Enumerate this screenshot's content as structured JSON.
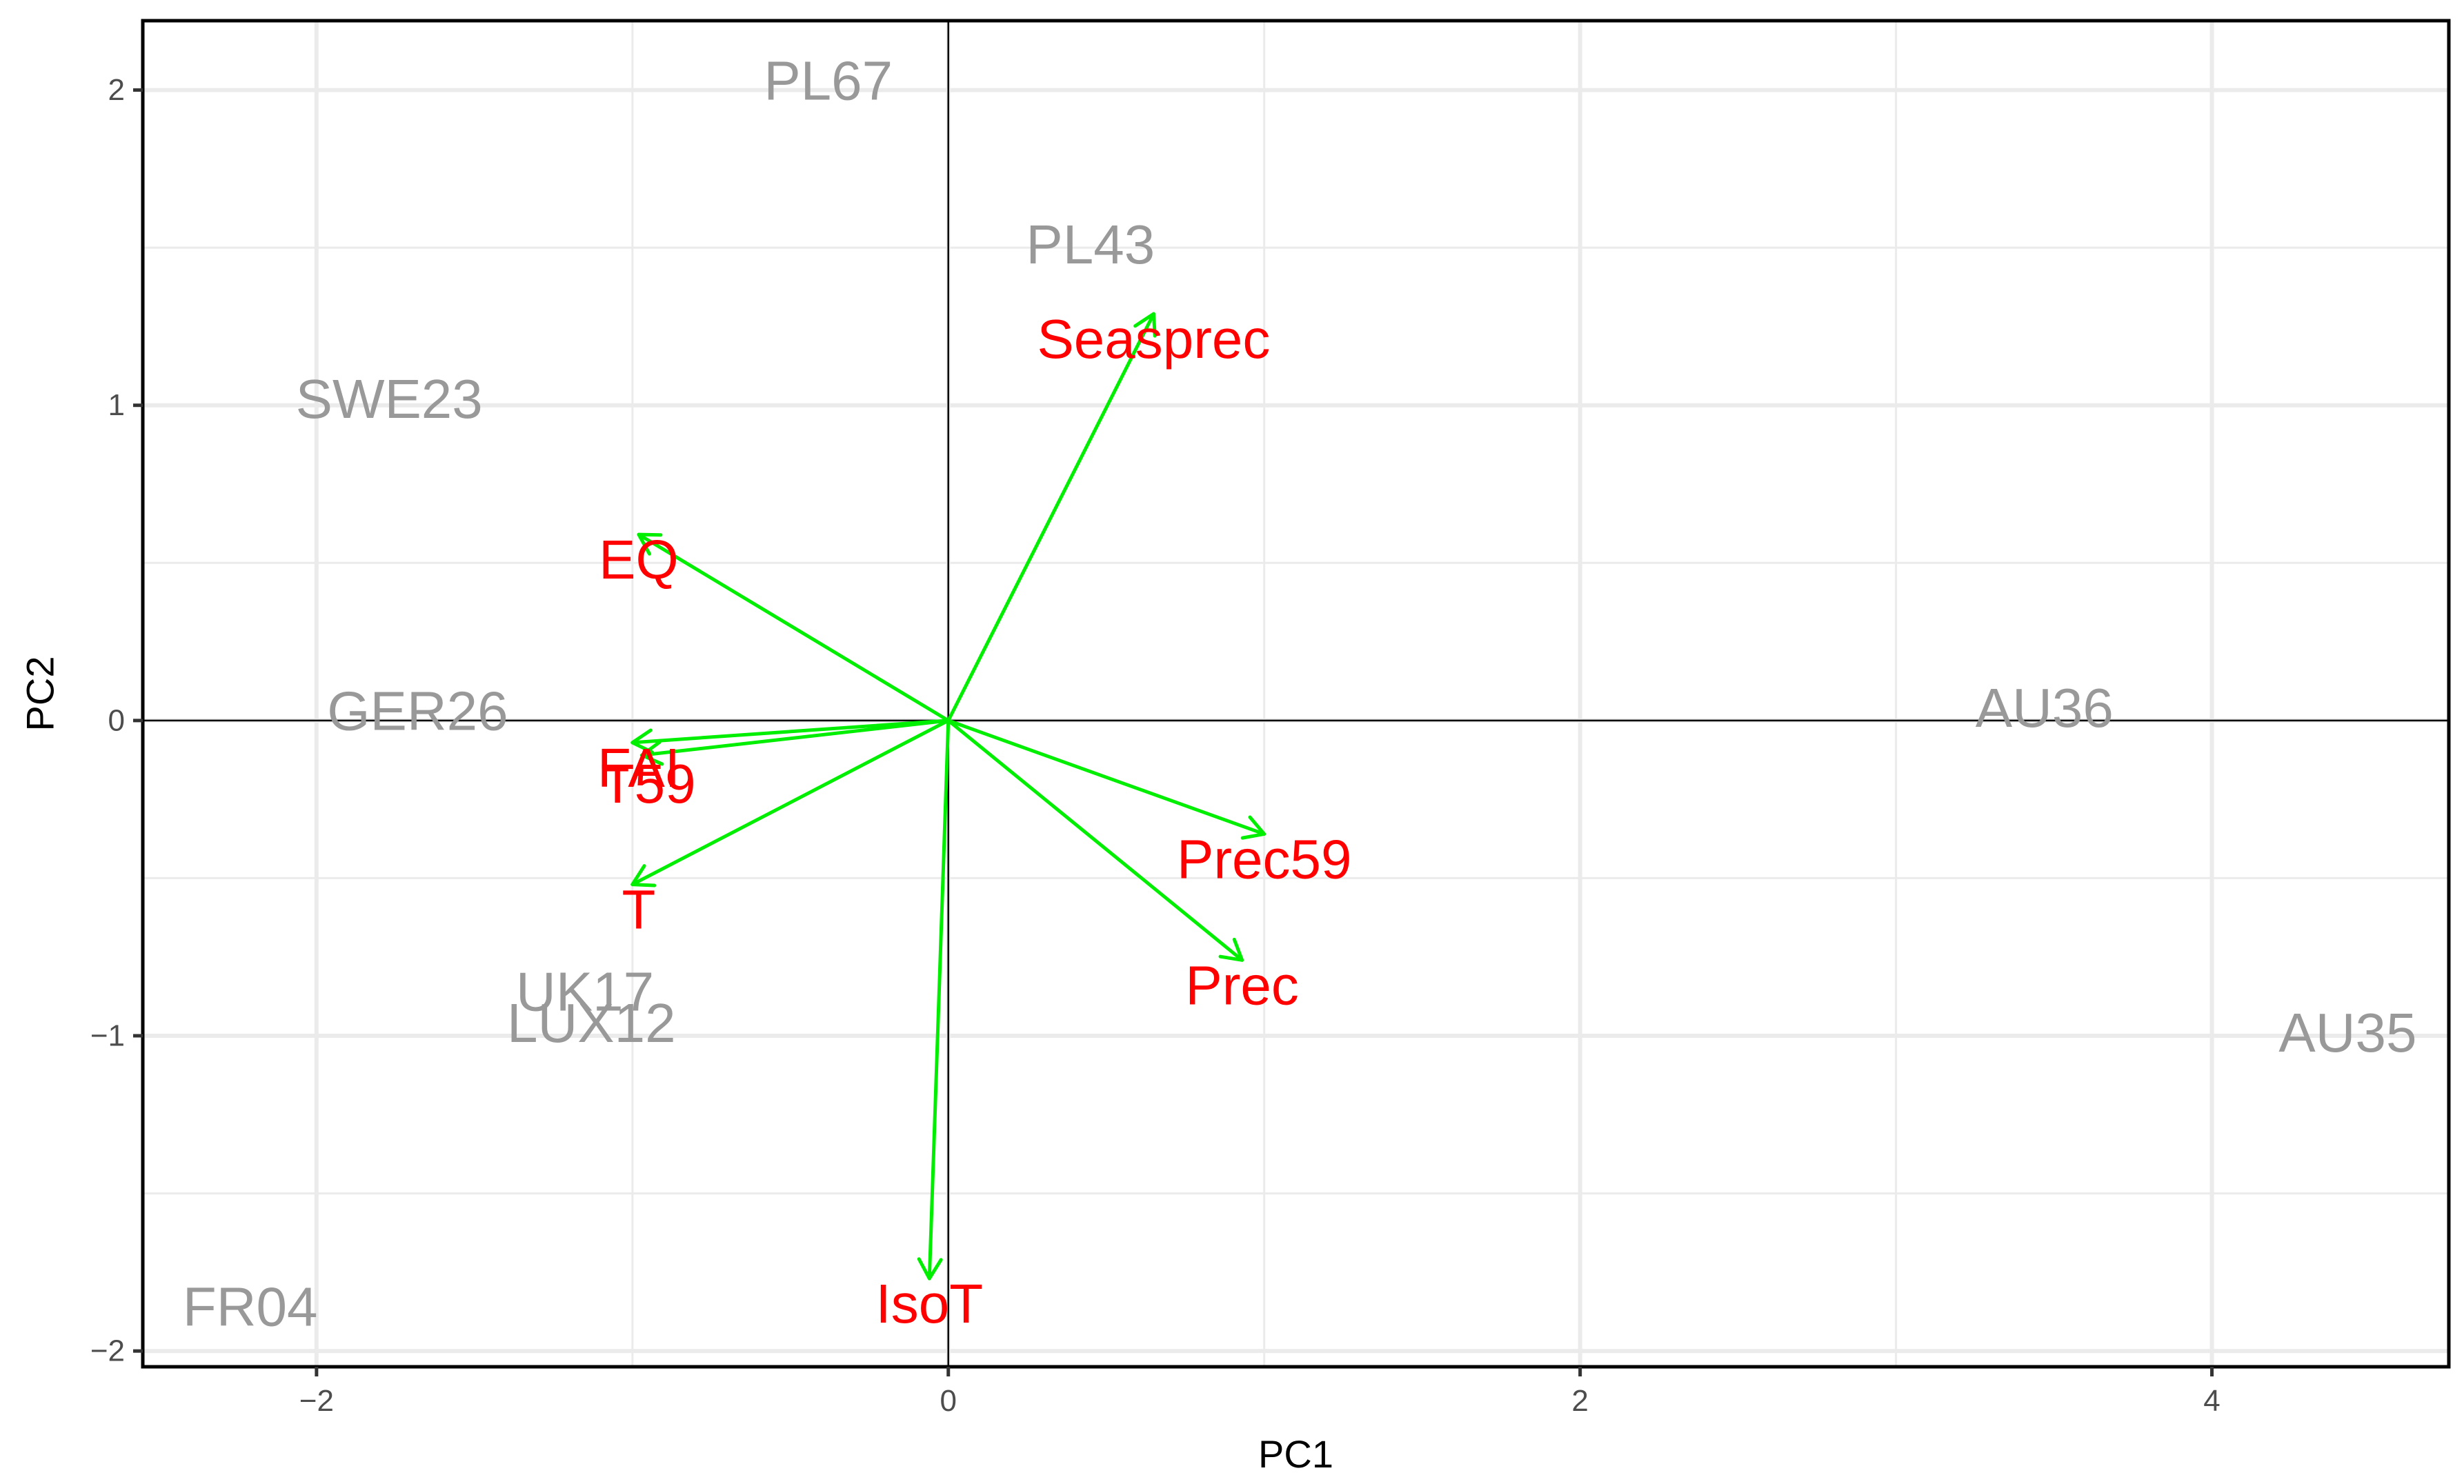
{
  "chart_data": {
    "type": "scatter",
    "subtype": "pca-biplot",
    "title": "",
    "xlabel": "PC1",
    "ylabel": "PC2",
    "xlim": [
      -2.55,
      4.75
    ],
    "ylim": [
      -2.05,
      2.22
    ],
    "x_ticks": [
      -2,
      0,
      2,
      4
    ],
    "y_ticks": [
      -2,
      -1,
      0,
      1,
      2
    ],
    "x_tick_labels": [
      "−2",
      "0",
      "2",
      "4"
    ],
    "y_tick_labels": [
      "−2",
      "−1",
      "0",
      "1",
      "2"
    ],
    "grid": true,
    "legend": "none",
    "zero_lines": true,
    "colors": {
      "site_label": "#999999",
      "variable_label": "#ff0000",
      "arrow": "#00ee00",
      "grid": "#ebebeb",
      "panel_border": "#000000",
      "zero_line": "#000000"
    },
    "sites": [
      {
        "label": "PL67",
        "x": -0.38,
        "y": 2.03
      },
      {
        "label": "PL43",
        "x": 0.45,
        "y": 1.51
      },
      {
        "label": "SWE23",
        "x": -1.77,
        "y": 1.02
      },
      {
        "label": "GER26",
        "x": -1.68,
        "y": 0.03
      },
      {
        "label": "AU36",
        "x": 3.47,
        "y": 0.04
      },
      {
        "label": "UK17",
        "x": -1.15,
        "y": -0.86
      },
      {
        "label": "LUX12",
        "x": -1.13,
        "y": -0.96
      },
      {
        "label": "AU35",
        "x": 4.43,
        "y": -0.99
      },
      {
        "label": "FR04",
        "x": -2.21,
        "y": -1.86
      }
    ],
    "variables": [
      {
        "label": "Seasprec",
        "x": 0.65,
        "y": 1.29,
        "label_x": 0.65,
        "label_y": 1.21
      },
      {
        "label": "EQ",
        "x": -0.98,
        "y": 0.59,
        "label_x": -0.98,
        "label_y": 0.51
      },
      {
        "label": "FAI",
        "x": -1.0,
        "y": -0.07,
        "label_x": -0.98,
        "label_y": -0.15
      },
      {
        "label": "T59",
        "x": -0.97,
        "y": -0.11,
        "label_x": -0.95,
        "label_y": -0.2
      },
      {
        "label": "T",
        "x": -1.0,
        "y": -0.52,
        "label_x": -0.98,
        "label_y": -0.6
      },
      {
        "label": "Prec59",
        "x": 1.0,
        "y": -0.36,
        "label_x": 1.0,
        "label_y": -0.44
      },
      {
        "label": "Prec",
        "x": 0.93,
        "y": -0.76,
        "label_x": 0.93,
        "label_y": -0.84
      },
      {
        "label": "IsoT",
        "x": -0.06,
        "y": -1.77,
        "label_x": -0.06,
        "label_y": -1.85
      }
    ]
  }
}
